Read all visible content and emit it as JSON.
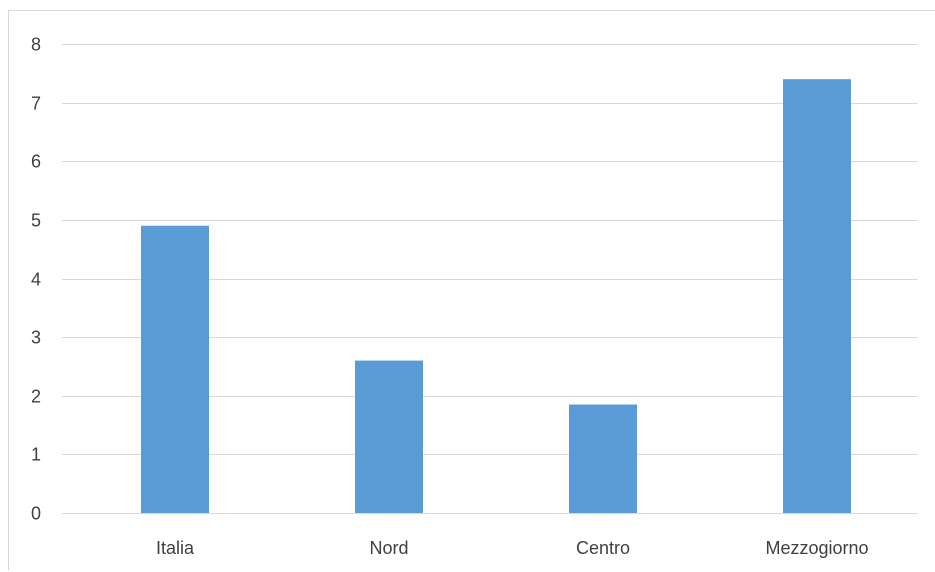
{
  "chart_data": {
    "type": "bar",
    "title": "",
    "xlabel": "",
    "ylabel": "",
    "categories": [
      "Italia",
      "Nord",
      "Centro",
      "Mezzogiorno"
    ],
    "values": [
      4.9,
      2.6,
      1.85,
      7.4
    ],
    "ylim": [
      0,
      8
    ],
    "yticks": [
      "0",
      "1",
      "2",
      "3",
      "4",
      "5",
      "6",
      "7",
      "8"
    ],
    "grid": true,
    "legend": "none",
    "bar_color": "#5b9bd5",
    "grid_color": "#d9d9d9",
    "text_color": "#404040"
  }
}
